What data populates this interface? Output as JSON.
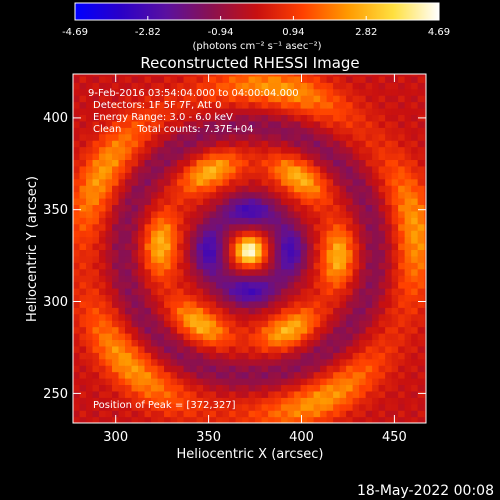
{
  "chart_data": {
    "type": "heatmap",
    "title": "Reconstructed RHESSI Image",
    "xlabel": "Heliocentric X (arcsec)",
    "ylabel": "Heliocentric Y (arcsec)",
    "xlim": [
      277,
      467
    ],
    "ylim": [
      233,
      423
    ],
    "xticks": [
      300,
      350,
      400,
      450
    ],
    "yticks": [
      250,
      300,
      350,
      400
    ],
    "annotations": [
      "9-Feb-2016 03:54:04.000 to 04:00:04.000",
      "Detectors: 1F 5F 7F, Att 0",
      "Energy Range: 3.0 - 6.0 keV",
      "Clean     Total counts: 7.37E+04"
    ],
    "peak_label": "Position of Peak = [372,327]",
    "peak": [
      372,
      327
    ],
    "colorbar": {
      "min": -4.69,
      "max": 4.69,
      "ticks": [
        "-4.69",
        "-2.82",
        "-0.94",
        "0.94",
        "2.82",
        "4.69"
      ],
      "unit_label": "(photons cm⁻² s⁻¹ asec⁻²)",
      "colors": [
        "#0000ff",
        "#2a00c8",
        "#5a10a0",
        "#8a1050",
        "#c81010",
        "#ff4000",
        "#ff9a00",
        "#ffe040",
        "#ffffff"
      ]
    },
    "grid": false
  },
  "footer_timestamp": "18-May-2022 00:08"
}
